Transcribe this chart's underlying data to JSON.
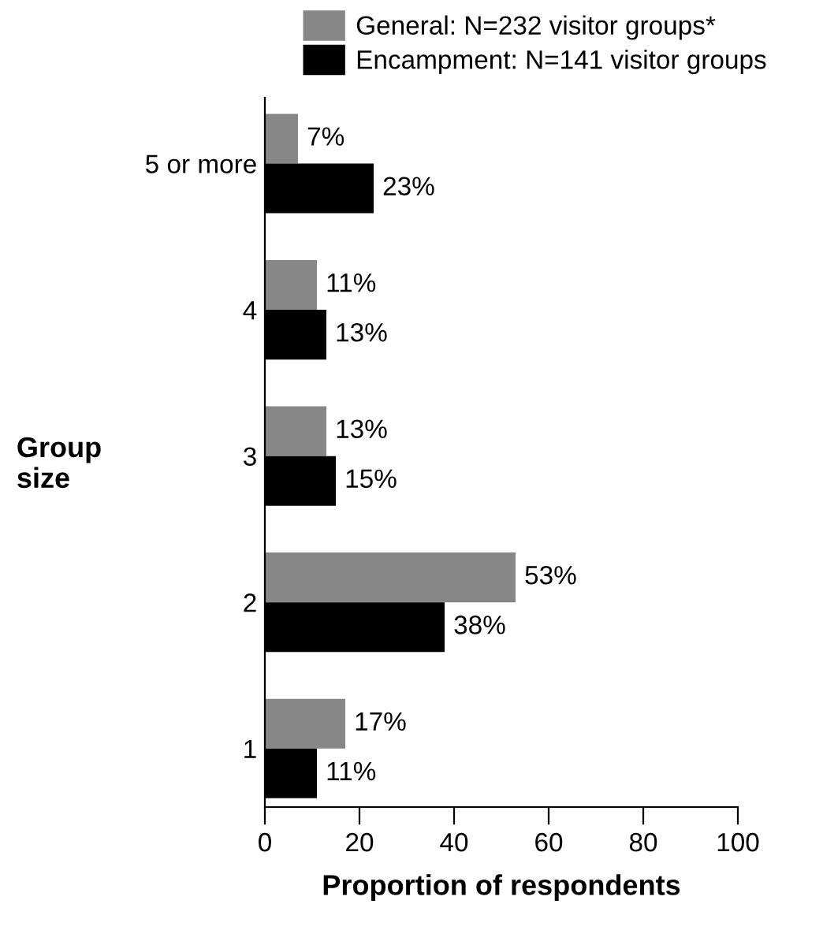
{
  "chart_data": {
    "type": "bar",
    "orientation": "horizontal",
    "xlabel": "Proportion of respondents",
    "ylabel": "Group size",
    "categories": [
      "5 or more",
      "4",
      "3",
      "2",
      "1"
    ],
    "series": [
      {
        "name": "General: N=232 visitor groups*",
        "color": "#878787",
        "values": [
          7,
          11,
          13,
          53,
          17
        ],
        "value_labels": [
          "7%",
          "11%",
          "13%",
          "53%",
          "17%"
        ]
      },
      {
        "name": "Encampment: N=141 visitor groups",
        "color": "#000000",
        "values": [
          23,
          13,
          15,
          38,
          11
        ],
        "value_labels": [
          "23%",
          "13%",
          "15%",
          "38%",
          "11%"
        ]
      }
    ],
    "xlim": [
      0,
      100
    ],
    "xticks": [
      0,
      20,
      40,
      60,
      80,
      100
    ],
    "grid": false,
    "legend": "top"
  }
}
